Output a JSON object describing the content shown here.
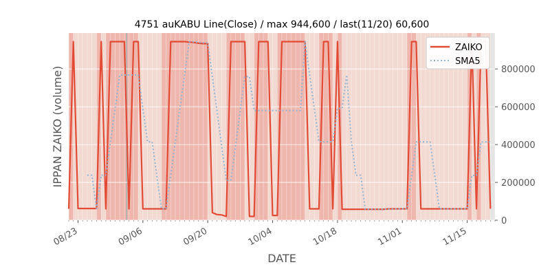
{
  "chart_data": {
    "type": "line",
    "title": "4751 auKABU Line(Close) / max 944,600 / last(11/20) 60,600",
    "xlabel": "DATE",
    "ylabel": "IPPAN ZAIKO (volume)",
    "y_axis_side": "right",
    "ylim": [
      0,
      990000
    ],
    "xlim": [
      "2021-08-21",
      "2021-11-21"
    ],
    "yticks": [
      0,
      200000,
      400000,
      600000,
      800000
    ],
    "ytick_labels": [
      "0",
      "200000",
      "400000",
      "600000",
      "800000"
    ],
    "xticks": [
      "2021-08-23",
      "2021-09-06",
      "2021-09-20",
      "2021-10-04",
      "2021-10-18",
      "2021-11-01",
      "2021-11-15"
    ],
    "xtick_labels": [
      "08/23",
      "09/06",
      "09/20",
      "10/04",
      "10/18",
      "11/01",
      "11/15"
    ],
    "legend": {
      "position": "top-right",
      "entries": [
        "ZAIKO",
        "SMA5"
      ]
    },
    "grid": true,
    "colors": {
      "zaiko": "#e24a33",
      "sma5": "#8eb4d6",
      "plot_background": "#e5e5e5",
      "band_light": "#f4d8cf",
      "band_dark": "#f0aea3",
      "band_gray": "#b0b0b0"
    },
    "series": [
      {
        "name": "ZAIKO",
        "style": "solid",
        "points": [
          [
            "2021-08-21",
            60000
          ],
          [
            "2021-08-22",
            944600
          ],
          [
            "2021-08-23",
            62000
          ],
          [
            "2021-08-24",
            62000
          ],
          [
            "2021-08-25",
            62000
          ],
          [
            "2021-08-26",
            62000
          ],
          [
            "2021-08-27",
            62000
          ],
          [
            "2021-08-28",
            944600
          ],
          [
            "2021-08-29",
            60000
          ],
          [
            "2021-08-30",
            944600
          ],
          [
            "2021-08-31",
            944600
          ],
          [
            "2021-09-01",
            944600
          ],
          [
            "2021-09-02",
            944600
          ],
          [
            "2021-09-03",
            60000
          ],
          [
            "2021-09-04",
            944600
          ],
          [
            "2021-09-05",
            944600
          ],
          [
            "2021-09-06",
            60000
          ],
          [
            "2021-09-07",
            60000
          ],
          [
            "2021-09-08",
            60000
          ],
          [
            "2021-09-09",
            60000
          ],
          [
            "2021-09-10",
            60000
          ],
          [
            "2021-09-11",
            60000
          ],
          [
            "2021-09-12",
            944600
          ],
          [
            "2021-09-13",
            944600
          ],
          [
            "2021-09-14",
            944600
          ],
          [
            "2021-09-15",
            944600
          ],
          [
            "2021-09-16",
            942000
          ],
          [
            "2021-09-17",
            940000
          ],
          [
            "2021-09-18",
            936000
          ],
          [
            "2021-09-19",
            934000
          ],
          [
            "2021-09-20",
            934000
          ],
          [
            "2021-09-21",
            40000
          ],
          [
            "2021-09-22",
            30000
          ],
          [
            "2021-09-23",
            28000
          ],
          [
            "2021-09-24",
            20000
          ],
          [
            "2021-09-25",
            944600
          ],
          [
            "2021-09-26",
            944600
          ],
          [
            "2021-09-27",
            944600
          ],
          [
            "2021-09-28",
            944600
          ],
          [
            "2021-09-29",
            20000
          ],
          [
            "2021-09-30",
            20000
          ],
          [
            "2021-10-01",
            944600
          ],
          [
            "2021-10-02",
            944600
          ],
          [
            "2021-10-03",
            944600
          ],
          [
            "2021-10-04",
            25000
          ],
          [
            "2021-10-05",
            25000
          ],
          [
            "2021-10-06",
            944600
          ],
          [
            "2021-10-07",
            944600
          ],
          [
            "2021-10-08",
            944600
          ],
          [
            "2021-10-09",
            944600
          ],
          [
            "2021-10-10",
            944600
          ],
          [
            "2021-10-11",
            944600
          ],
          [
            "2021-10-12",
            60000
          ],
          [
            "2021-10-13",
            60000
          ],
          [
            "2021-10-14",
            60000
          ],
          [
            "2021-10-15",
            944600
          ],
          [
            "2021-10-16",
            944600
          ],
          [
            "2021-10-17",
            60000
          ],
          [
            "2021-10-18",
            944600
          ],
          [
            "2021-10-19",
            58000
          ],
          [
            "2021-10-20",
            58000
          ],
          [
            "2021-10-21",
            58000
          ],
          [
            "2021-10-22",
            58000
          ],
          [
            "2021-10-23",
            58000
          ],
          [
            "2021-10-24",
            58000
          ],
          [
            "2021-10-25",
            58000
          ],
          [
            "2021-10-26",
            58000
          ],
          [
            "2021-10-27",
            58000
          ],
          [
            "2021-10-28",
            58000
          ],
          [
            "2021-10-29",
            60000
          ],
          [
            "2021-10-30",
            60000
          ],
          [
            "2021-10-31",
            60000
          ],
          [
            "2021-11-01",
            60000
          ],
          [
            "2021-11-02",
            60000
          ],
          [
            "2021-11-03",
            944600
          ],
          [
            "2021-11-04",
            944600
          ],
          [
            "2021-11-05",
            60000
          ],
          [
            "2021-11-06",
            60000
          ],
          [
            "2021-11-07",
            60000
          ],
          [
            "2021-11-08",
            60000
          ],
          [
            "2021-11-09",
            60000
          ],
          [
            "2021-11-10",
            60000
          ],
          [
            "2021-11-11",
            60000
          ],
          [
            "2021-11-12",
            60000
          ],
          [
            "2021-11-13",
            60000
          ],
          [
            "2021-11-14",
            60000
          ],
          [
            "2021-11-15",
            60000
          ],
          [
            "2021-11-16",
            944600
          ],
          [
            "2021-11-17",
            60000
          ],
          [
            "2021-11-18",
            944600
          ],
          [
            "2021-11-19",
            944600
          ],
          [
            "2021-11-20",
            60600
          ]
        ]
      },
      {
        "name": "SMA5",
        "style": "dotted",
        "points": [
          [
            "2021-08-25",
            238000
          ],
          [
            "2021-08-26",
            238000
          ],
          [
            "2021-08-27",
            62000
          ],
          [
            "2021-08-28",
            238000
          ],
          [
            "2021-08-29",
            238000
          ],
          [
            "2021-08-30",
            415000
          ],
          [
            "2021-08-31",
            591000
          ],
          [
            "2021-09-01",
            768000
          ],
          [
            "2021-09-02",
            768000
          ],
          [
            "2021-09-03",
            768000
          ],
          [
            "2021-09-04",
            768000
          ],
          [
            "2021-09-05",
            768000
          ],
          [
            "2021-09-06",
            591000
          ],
          [
            "2021-09-07",
            415000
          ],
          [
            "2021-09-08",
            415000
          ],
          [
            "2021-09-09",
            238000
          ],
          [
            "2021-09-10",
            60000
          ],
          [
            "2021-09-11",
            60000
          ],
          [
            "2021-09-12",
            237000
          ],
          [
            "2021-09-13",
            414000
          ],
          [
            "2021-09-14",
            591000
          ],
          [
            "2021-09-15",
            768000
          ],
          [
            "2021-09-16",
            944000
          ],
          [
            "2021-09-17",
            943000
          ],
          [
            "2021-09-18",
            941000
          ],
          [
            "2021-09-19",
            938000
          ],
          [
            "2021-09-20",
            937000
          ],
          [
            "2021-09-21",
            758000
          ],
          [
            "2021-09-22",
            577000
          ],
          [
            "2021-09-23",
            392000
          ],
          [
            "2021-09-24",
            210000
          ],
          [
            "2021-09-25",
            212000
          ],
          [
            "2021-09-26",
            395000
          ],
          [
            "2021-09-27",
            577000
          ],
          [
            "2021-09-28",
            760000
          ],
          [
            "2021-09-29",
            760000
          ],
          [
            "2021-09-30",
            580000
          ],
          [
            "2021-10-01",
            580000
          ],
          [
            "2021-10-02",
            580000
          ],
          [
            "2021-10-03",
            580000
          ],
          [
            "2021-10-04",
            580000
          ],
          [
            "2021-10-05",
            580000
          ],
          [
            "2021-10-06",
            580000
          ],
          [
            "2021-10-07",
            580000
          ],
          [
            "2021-10-08",
            580000
          ],
          [
            "2021-10-09",
            580000
          ],
          [
            "2021-10-10",
            580000
          ],
          [
            "2021-10-11",
            944600
          ],
          [
            "2021-10-12",
            768000
          ],
          [
            "2021-10-13",
            591000
          ],
          [
            "2021-10-14",
            415000
          ],
          [
            "2021-10-15",
            415000
          ],
          [
            "2021-10-16",
            415000
          ],
          [
            "2021-10-17",
            415000
          ],
          [
            "2021-10-18",
            591000
          ],
          [
            "2021-10-19",
            591000
          ],
          [
            "2021-10-20",
            768000
          ],
          [
            "2021-10-21",
            415000
          ],
          [
            "2021-10-22",
            238000
          ],
          [
            "2021-10-23",
            238000
          ],
          [
            "2021-10-24",
            58000
          ],
          [
            "2021-10-25",
            58000
          ],
          [
            "2021-10-26",
            58000
          ],
          [
            "2021-10-27",
            58000
          ],
          [
            "2021-10-28",
            58000
          ],
          [
            "2021-10-29",
            59000
          ],
          [
            "2021-10-30",
            59000
          ],
          [
            "2021-10-31",
            60000
          ],
          [
            "2021-11-01",
            60000
          ],
          [
            "2021-11-02",
            60000
          ],
          [
            "2021-11-03",
            237000
          ],
          [
            "2021-11-04",
            414000
          ],
          [
            "2021-11-05",
            414000
          ],
          [
            "2021-11-06",
            414000
          ],
          [
            "2021-11-07",
            414000
          ],
          [
            "2021-11-08",
            237000
          ],
          [
            "2021-11-09",
            60000
          ],
          [
            "2021-11-10",
            60000
          ],
          [
            "2021-11-11",
            60000
          ],
          [
            "2021-11-12",
            60000
          ],
          [
            "2021-11-13",
            60000
          ],
          [
            "2021-11-14",
            60000
          ],
          [
            "2021-11-15",
            60000
          ],
          [
            "2021-11-16",
            237000
          ],
          [
            "2021-11-17",
            237000
          ],
          [
            "2021-11-18",
            414000
          ],
          [
            "2021-11-19",
            414000
          ],
          [
            "2021-11-20",
            414000
          ]
        ]
      }
    ],
    "background_bands": [
      {
        "start": "2021-08-20",
        "end": "2021-08-21",
        "shade": "band_light"
      },
      {
        "start": "2021-08-21",
        "end": "2021-08-22",
        "shade": "band_dark"
      },
      {
        "start": "2021-08-22",
        "end": "2021-08-27",
        "shade": "band_light"
      },
      {
        "start": "2021-08-27",
        "end": "2021-08-28",
        "shade": "band_dark"
      },
      {
        "start": "2021-08-28",
        "end": "2021-08-29",
        "shade": "band_light"
      },
      {
        "start": "2021-08-29",
        "end": "2021-09-05",
        "shade": "band_dark"
      },
      {
        "start": "2021-09-05",
        "end": "2021-09-10",
        "shade": "band_light"
      },
      {
        "start": "2021-09-10",
        "end": "2021-09-20",
        "shade": "band_dark"
      },
      {
        "start": "2021-09-20",
        "end": "2021-09-24",
        "shade": "band_light"
      },
      {
        "start": "2021-09-24",
        "end": "2021-09-28",
        "shade": "band_dark"
      },
      {
        "start": "2021-09-28",
        "end": "2021-09-30",
        "shade": "band_light"
      },
      {
        "start": "2021-09-30",
        "end": "2021-10-03",
        "shade": "band_dark"
      },
      {
        "start": "2021-10-03",
        "end": "2021-10-05",
        "shade": "band_light"
      },
      {
        "start": "2021-10-05",
        "end": "2021-10-11",
        "shade": "band_dark"
      },
      {
        "start": "2021-10-11",
        "end": "2021-10-14",
        "shade": "band_light"
      },
      {
        "start": "2021-10-14",
        "end": "2021-10-17",
        "shade": "band_dark"
      },
      {
        "start": "2021-10-17",
        "end": "2021-10-18",
        "shade": "band_light"
      },
      {
        "start": "2021-10-18",
        "end": "2021-10-19",
        "shade": "band_dark"
      },
      {
        "start": "2021-10-19",
        "end": "2021-11-02",
        "shade": "band_light"
      },
      {
        "start": "2021-11-02",
        "end": "2021-11-04",
        "shade": "band_dark"
      },
      {
        "start": "2021-11-04",
        "end": "2021-11-15",
        "shade": "band_light"
      },
      {
        "start": "2021-11-15",
        "end": "2021-11-16",
        "shade": "band_dark"
      },
      {
        "start": "2021-11-16",
        "end": "2021-11-17",
        "shade": "band_light"
      },
      {
        "start": "2021-11-17",
        "end": "2021-11-18",
        "shade": "band_dark"
      },
      {
        "start": "2021-11-18",
        "end": "2021-11-20",
        "shade": "band_light"
      },
      {
        "start": "2021-09-02",
        "end": "2021-09-03",
        "shade": "band_gray"
      }
    ]
  }
}
